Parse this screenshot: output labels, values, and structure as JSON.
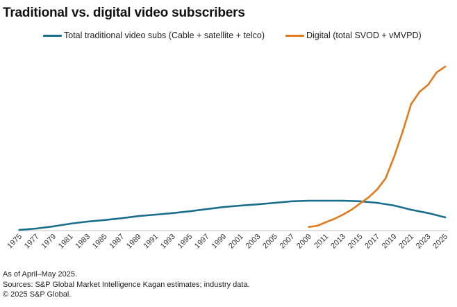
{
  "chart_data": {
    "type": "line",
    "title": "Traditional vs. digital video subscribers",
    "xlabel": "",
    "ylabel": "",
    "y_units_note": "No y-axis labels shown; values estimated in millions from line heights (traditional peak ~100M)",
    "ylim": [
      0,
      560
    ],
    "xlim": [
      1975,
      2025
    ],
    "grid": false,
    "legend_position": "top",
    "x_tick_labels": [
      "1975",
      "1977",
      "1979",
      "1981",
      "1983",
      "1985",
      "1987",
      "1989",
      "1991",
      "1993",
      "1995",
      "1997",
      "1999",
      "2001",
      "2003",
      "2005",
      "2007",
      "2009",
      "2011",
      "2013",
      "2015",
      "2017",
      "2019",
      "2021",
      "2023",
      "2025"
    ],
    "series": [
      {
        "name": "Total traditional video subs (Cable + satellite + telco)",
        "color": "#1a6e8c",
        "x": [
          1975,
          1977,
          1979,
          1981,
          1983,
          1985,
          1987,
          1989,
          1991,
          1993,
          1995,
          1997,
          1999,
          2001,
          2003,
          2005,
          2007,
          2009,
          2011,
          2013,
          2015,
          2017,
          2019,
          2021,
          2023,
          2025
        ],
        "values": [
          2,
          7,
          14,
          23,
          30,
          35,
          41,
          48,
          53,
          58,
          64,
          71,
          78,
          83,
          87,
          92,
          97,
          99,
          99,
          99,
          97,
          92,
          83,
          69,
          58,
          44
        ]
      },
      {
        "name": "Digital (total SVOD + vMVPD)",
        "color": "#e07a1c",
        "x": [
          2009,
          2010,
          2011,
          2012,
          2013,
          2014,
          2015,
          2016,
          2017,
          2018,
          2019,
          2020,
          2021,
          2022,
          2023,
          2024,
          2025
        ],
        "values": [
          12,
          16,
          28,
          39,
          53,
          69,
          90,
          110,
          136,
          173,
          244,
          327,
          419,
          460,
          483,
          524,
          543
        ]
      }
    ]
  },
  "footer": {
    "as_of": "As of April–May 2025.",
    "sources": "Sources: S&P Global Market Intelligence Kagan estimates; industry data.",
    "copyright": "© 2025 S&P Global."
  }
}
